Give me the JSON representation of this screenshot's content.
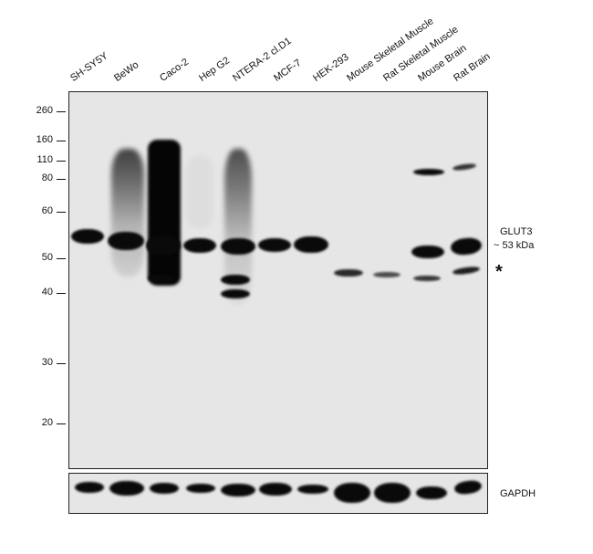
{
  "lanes": [
    "SH-SY5Y",
    "BeWo",
    "Caco-2",
    "Hep G2",
    "NTERA-2 cl.D1",
    "MCF-7",
    "HEK-293",
    "Mouse Skeletal Muscle",
    "Rat Skeletal Muscle",
    "Mouse Brain",
    "Rat Brain"
  ],
  "markers": [
    "260",
    "160",
    "110",
    "80",
    "60",
    "50",
    "40",
    "30",
    "20"
  ],
  "labels": {
    "target_name": "GLUT3",
    "target_size": "~ 53 kDa",
    "asterisk": "*",
    "loading_control": "GAPDH"
  }
}
